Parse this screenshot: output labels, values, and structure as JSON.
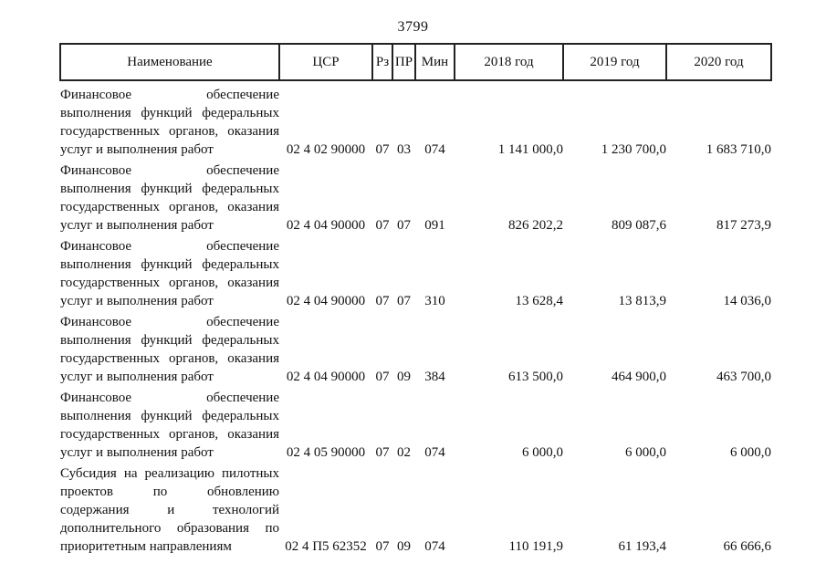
{
  "page": {
    "number": "3799"
  },
  "table": {
    "headers": {
      "name": "Наименование",
      "csr": "ЦСР",
      "rz": "Рз",
      "pr": "ПР",
      "min": "Мин",
      "y2018": "2018 год",
      "y2019": "2019 год",
      "y2020": "2020 год"
    },
    "rows": [
      {
        "name_lines": [
          "Финансовое обеспечение",
          "выполнения функций федеральных",
          "государственных органов, оказания",
          "услуг и выполнения работ"
        ],
        "csr": "02 4 02 90000",
        "rz": "07",
        "pr": "03",
        "min": "074",
        "y2018": "1 141 000,0",
        "y2019": "1 230 700,0",
        "y2020": "1 683 710,0"
      },
      {
        "name_lines": [
          "Финансовое обеспечение",
          "выполнения функций федеральных",
          "государственных органов, оказания",
          "услуг и выполнения работ"
        ],
        "csr": "02 4 04 90000",
        "rz": "07",
        "pr": "07",
        "min": "091",
        "y2018": "826 202,2",
        "y2019": "809 087,6",
        "y2020": "817 273,9"
      },
      {
        "name_lines": [
          "Финансовое обеспечение",
          "выполнения функций федеральных",
          "государственных органов, оказания",
          "услуг и выполнения работ"
        ],
        "csr": "02 4 04 90000",
        "rz": "07",
        "pr": "07",
        "min": "310",
        "y2018": "13 628,4",
        "y2019": "13 813,9",
        "y2020": "14 036,0"
      },
      {
        "name_lines": [
          "Финансовое обеспечение",
          "выполнения функций федеральных",
          "государственных органов, оказания",
          "услуг и выполнения работ"
        ],
        "csr": "02 4 04 90000",
        "rz": "07",
        "pr": "09",
        "min": "384",
        "y2018": "613 500,0",
        "y2019": "464 900,0",
        "y2020": "463 700,0"
      },
      {
        "name_lines": [
          "Финансовое обеспечение",
          "выполнения функций федеральных",
          "государственных органов, оказания",
          "услуг и выполнения работ"
        ],
        "csr": "02 4 05 90000",
        "rz": "07",
        "pr": "02",
        "min": "074",
        "y2018": "6 000,0",
        "y2019": "6 000,0",
        "y2020": "6 000,0"
      },
      {
        "name_lines": [
          "Субсидия на реализацию пилотных",
          "проектов по обновлению",
          "содержания и технологий",
          "дополнительного образования по",
          "приоритетным направлениям"
        ],
        "csr": "02 4 П5 62352",
        "rz": "07",
        "pr": "09",
        "min": "074",
        "y2018": "110 191,9",
        "y2019": "61 193,4",
        "y2020": "66 666,6"
      }
    ]
  }
}
